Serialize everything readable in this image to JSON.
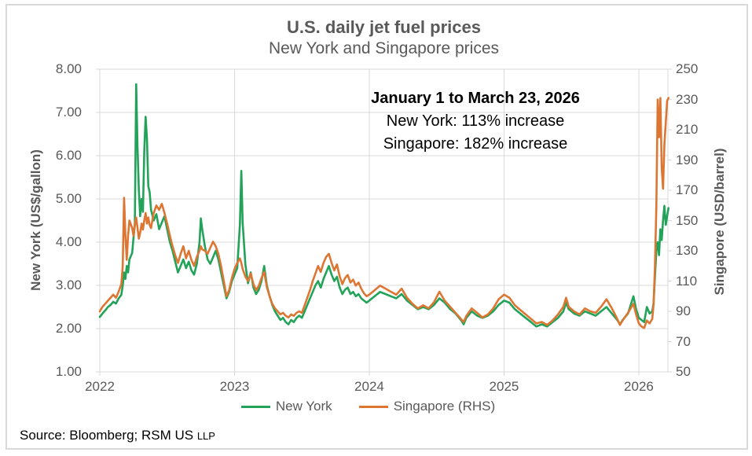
{
  "header": {
    "title": "U.S. daily jet fuel prices",
    "subtitle": "New York and Singapore prices"
  },
  "annotation": {
    "line1": "January 1 to March 23, 2026",
    "line2": "New York: 113% increase",
    "line3": "Singapore: 182% increase"
  },
  "axes": {
    "left_title": "New York (US$/gallon)",
    "right_title": "Singapore (USD/barrel)"
  },
  "legend": {
    "items": [
      {
        "label": "New York",
        "color": "#22A359"
      },
      {
        "label": "Singapore (RHS)",
        "color": "#DD7633"
      }
    ]
  },
  "source": {
    "text": "Source: Bloomberg; RSM US",
    "suffix": "LLP"
  },
  "colors": {
    "new_york": "#22A359",
    "singapore": "#DD7633",
    "text_gray": "#595959",
    "grid": "#d9d9d9",
    "annotation": "#000000"
  },
  "chart_data": {
    "type": "line",
    "title": "U.S. daily jet fuel prices",
    "subtitle": "New York and Singapore prices",
    "annotations": [
      "January 1 to March 23, 2026",
      "New York: 113% increase",
      "Singapore: 182% increase"
    ],
    "grid": true,
    "legend_position": "bottom",
    "x_range": [
      2022.0,
      2026.216
    ],
    "x_ticks": [
      2022,
      2023,
      2024,
      2025,
      2026
    ],
    "left_axis": {
      "label": "New York (US$/gallon)",
      "range": [
        1,
        8
      ],
      "ticks": [
        8,
        7,
        6,
        5,
        4,
        3,
        2,
        1
      ],
      "tick_labels": [
        "8.00",
        "7.00",
        "6.00",
        "5.00",
        "4.00",
        "3.00",
        "2.00",
        "1.00"
      ]
    },
    "right_axis": {
      "label": "Singapore (USD/barrel)",
      "range": [
        50,
        250
      ],
      "ticks": [
        250,
        230,
        210,
        190,
        170,
        150,
        130,
        110,
        90,
        70,
        50
      ],
      "tick_labels": [
        "250",
        "230",
        "210",
        "190",
        "170",
        "150",
        "130",
        "110",
        "90",
        "70",
        "50"
      ]
    },
    "x": [
      2022.0,
      2022.02,
      2022.04,
      2022.06,
      2022.08,
      2022.1,
      2022.12,
      2022.14,
      2022.16,
      2022.17,
      2022.18,
      2022.19,
      2022.2,
      2022.21,
      2022.22,
      2022.24,
      2022.25,
      2022.26,
      2022.27,
      2022.28,
      2022.29,
      2022.3,
      2022.31,
      2022.32,
      2022.33,
      2022.34,
      2022.35,
      2022.36,
      2022.37,
      2022.38,
      2022.4,
      2022.42,
      2022.44,
      2022.46,
      2022.48,
      2022.5,
      2022.52,
      2022.54,
      2022.56,
      2022.58,
      2022.6,
      2022.62,
      2022.64,
      2022.66,
      2022.68,
      2022.7,
      2022.72,
      2022.74,
      2022.75,
      2022.76,
      2022.78,
      2022.8,
      2022.82,
      2022.84,
      2022.86,
      2022.88,
      2022.9,
      2022.92,
      2022.94,
      2022.96,
      2022.98,
      2023.0,
      2023.02,
      2023.04,
      2023.05,
      2023.06,
      2023.08,
      2023.1,
      2023.12,
      2023.14,
      2023.16,
      2023.18,
      2023.2,
      2023.22,
      2023.24,
      2023.26,
      2023.28,
      2023.3,
      2023.32,
      2023.34,
      2023.36,
      2023.38,
      2023.4,
      2023.42,
      2023.44,
      2023.46,
      2023.48,
      2023.5,
      2023.52,
      2023.54,
      2023.56,
      2023.58,
      2023.6,
      2023.62,
      2023.64,
      2023.66,
      2023.68,
      2023.7,
      2023.72,
      2023.74,
      2023.76,
      2023.78,
      2023.8,
      2023.82,
      2023.84,
      2023.86,
      2023.88,
      2023.9,
      2023.92,
      2023.94,
      2023.96,
      2023.98,
      2024.0,
      2024.04,
      2024.08,
      2024.12,
      2024.16,
      2024.2,
      2024.24,
      2024.28,
      2024.32,
      2024.36,
      2024.4,
      2024.44,
      2024.48,
      2024.52,
      2024.56,
      2024.6,
      2024.64,
      2024.68,
      2024.7,
      2024.72,
      2024.76,
      2024.8,
      2024.84,
      2024.88,
      2024.92,
      2024.96,
      2025.0,
      2025.04,
      2025.08,
      2025.12,
      2025.16,
      2025.2,
      2025.24,
      2025.28,
      2025.32,
      2025.36,
      2025.4,
      2025.44,
      2025.46,
      2025.48,
      2025.52,
      2025.56,
      2025.6,
      2025.64,
      2025.68,
      2025.72,
      2025.76,
      2025.8,
      2025.84,
      2025.86,
      2025.88,
      2025.92,
      2025.96,
      2025.98,
      2026.0,
      2026.02,
      2026.04,
      2026.06,
      2026.08,
      2026.1,
      2026.11,
      2026.12,
      2026.13,
      2026.14,
      2026.15,
      2026.16,
      2026.17,
      2026.18,
      2026.19,
      2026.2,
      2026.21,
      2026.22
    ],
    "series": [
      {
        "name": "New York",
        "axis": "left",
        "unit": "US$/gallon",
        "color": "#22A359",
        "values": [
          2.27,
          2.35,
          2.42,
          2.5,
          2.55,
          2.62,
          2.58,
          2.7,
          2.78,
          3.0,
          3.3,
          3.15,
          3.45,
          3.3,
          3.6,
          3.75,
          4.1,
          4.4,
          7.65,
          6.2,
          5.2,
          4.6,
          5.0,
          4.7,
          6.1,
          6.9,
          6.4,
          5.3,
          5.15,
          4.75,
          4.5,
          4.65,
          4.3,
          4.45,
          4.6,
          4.3,
          4.0,
          3.8,
          3.55,
          3.3,
          3.45,
          3.6,
          3.4,
          3.55,
          3.35,
          3.25,
          3.5,
          4.0,
          4.55,
          4.3,
          3.9,
          3.6,
          3.5,
          3.65,
          3.8,
          3.6,
          3.3,
          3.0,
          2.7,
          2.85,
          3.1,
          3.25,
          3.4,
          4.4,
          5.65,
          4.45,
          3.5,
          3.05,
          3.3,
          2.95,
          2.8,
          2.9,
          3.1,
          3.45,
          3.0,
          2.75,
          2.55,
          2.4,
          2.3,
          2.2,
          2.25,
          2.15,
          2.1,
          2.2,
          2.15,
          2.25,
          2.3,
          2.25,
          2.4,
          2.55,
          2.7,
          2.85,
          3.0,
          3.1,
          2.95,
          3.15,
          3.3,
          3.45,
          3.25,
          3.1,
          3.2,
          2.95,
          2.8,
          2.9,
          2.95,
          2.8,
          2.85,
          2.75,
          2.8,
          2.7,
          2.65,
          2.6,
          2.65,
          2.75,
          2.85,
          2.8,
          2.75,
          2.7,
          2.8,
          2.65,
          2.55,
          2.45,
          2.5,
          2.45,
          2.55,
          2.7,
          2.6,
          2.45,
          2.35,
          2.2,
          2.1,
          2.25,
          2.4,
          2.3,
          2.25,
          2.3,
          2.4,
          2.55,
          2.65,
          2.6,
          2.45,
          2.35,
          2.25,
          2.15,
          2.05,
          2.1,
          2.05,
          2.15,
          2.25,
          2.4,
          2.6,
          2.45,
          2.35,
          2.3,
          2.4,
          2.35,
          2.3,
          2.4,
          2.5,
          2.35,
          2.2,
          2.1,
          2.2,
          2.35,
          2.75,
          2.45,
          2.25,
          2.2,
          2.15,
          2.5,
          2.35,
          2.4,
          2.6,
          3.2,
          3.8,
          4.0,
          3.7,
          4.3,
          4.05,
          4.5,
          4.84,
          4.4,
          4.6,
          4.79
        ]
      },
      {
        "name": "Singapore (RHS)",
        "axis": "right",
        "unit": "USD/barrel",
        "color": "#DD7633",
        "values": [
          90,
          93,
          95,
          97,
          99,
          101,
          99,
          103,
          108,
          120,
          165,
          140,
          124,
          140,
          150,
          145,
          140,
          148,
          152,
          145,
          138,
          142,
          148,
          144,
          150,
          155,
          148,
          152,
          147,
          145,
          155,
          160,
          157,
          161,
          155,
          148,
          140,
          133,
          127,
          122,
          128,
          133,
          125,
          130,
          124,
          120,
          126,
          130,
          133,
          131,
          130,
          128,
          132,
          136,
          133,
          128,
          120,
          110,
          100,
          104,
          112,
          118,
          122,
          125,
          122,
          118,
          113,
          110,
          115,
          108,
          104,
          107,
          112,
          116,
          106,
          100,
          95,
          92,
          90,
          88,
          89,
          87,
          86,
          88,
          87,
          89,
          90,
          89,
          94,
          99,
          104,
          110,
          115,
          120,
          116,
          122,
          126,
          128,
          122,
          117,
          121,
          113,
          108,
          112,
          114,
          109,
          111,
          107,
          109,
          105,
          102,
          100,
          101,
          104,
          107,
          105,
          103,
          101,
          105,
          99,
          95,
          92,
          94,
          92,
          96,
          103,
          97,
          93,
          89,
          85,
          83,
          87,
          92,
          89,
          86,
          88,
          92,
          98,
          101,
          99,
          94,
          91,
          88,
          85,
          82,
          83,
          81,
          84,
          88,
          93,
          99,
          93,
          90,
          88,
          92,
          90,
          89,
          93,
          98,
          92,
          85,
          81,
          84,
          89,
          95,
          88,
          82,
          80,
          79,
          84,
          82,
          85,
          95,
          120,
          160,
          230,
          205,
          231,
          185,
          171,
          200,
          215,
          229,
          231
        ]
      }
    ]
  }
}
